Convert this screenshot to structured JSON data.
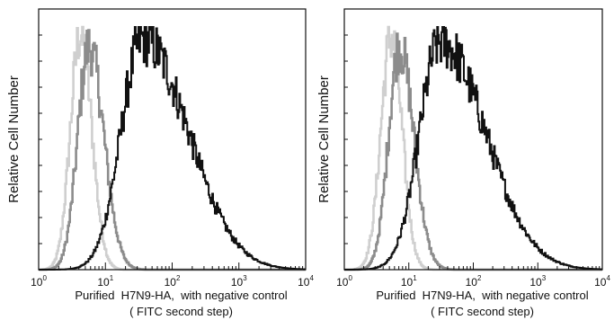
{
  "chart_data": [
    {
      "type": "area",
      "panel": "left",
      "ylabel": "Relative Cell Number",
      "xlabel_line1": "Purified  H7N9-HA,  with negative control",
      "xlabel_line2": "( FITC second step)",
      "x_scale": "log",
      "xlim": [
        1,
        10000
      ],
      "x_ticks": [
        {
          "base": "10",
          "exp": "0"
        },
        {
          "base": "10",
          "exp": "1"
        },
        {
          "base": "10",
          "exp": "2"
        },
        {
          "base": "10",
          "exp": "3"
        },
        {
          "base": "10",
          "exp": "4"
        }
      ],
      "ylim": [
        0,
        1
      ],
      "grid": false,
      "series": [
        {
          "color": "#cfcfcf",
          "peak_log": 0.62,
          "peak_height": 0.97,
          "width_left": 0.15,
          "width_right": 0.17
        },
        {
          "color": "#8c8c8c",
          "peak_log": 0.75,
          "peak_height": 0.92,
          "width_left": 0.17,
          "width_right": 0.22
        },
        {
          "color": "#111111",
          "peak_log": 1.55,
          "peak_height": 0.95,
          "width_left": 0.32,
          "width_right": 0.68
        }
      ]
    },
    {
      "type": "area",
      "panel": "right",
      "ylabel": "Relative Cell Number",
      "xlabel_line1": "Purified  H7N9-HA,  with negative control",
      "xlabel_line2": "( FITC second step)",
      "x_scale": "log",
      "xlim": [
        1,
        10000
      ],
      "x_ticks": [
        {
          "base": "10",
          "exp": "0"
        },
        {
          "base": "10",
          "exp": "1"
        },
        {
          "base": "10",
          "exp": "2"
        },
        {
          "base": "10",
          "exp": "3"
        },
        {
          "base": "10",
          "exp": "4"
        }
      ],
      "ylim": [
        0,
        1
      ],
      "grid": false,
      "series": [
        {
          "color": "#cfcfcf",
          "peak_log": 0.72,
          "peak_height": 0.96,
          "width_left": 0.16,
          "width_right": 0.17
        },
        {
          "color": "#8c8c8c",
          "peak_log": 0.85,
          "peak_height": 0.92,
          "width_left": 0.17,
          "width_right": 0.22
        },
        {
          "color": "#111111",
          "peak_log": 1.48,
          "peak_height": 0.94,
          "width_left": 0.32,
          "width_right": 0.7
        }
      ]
    }
  ]
}
